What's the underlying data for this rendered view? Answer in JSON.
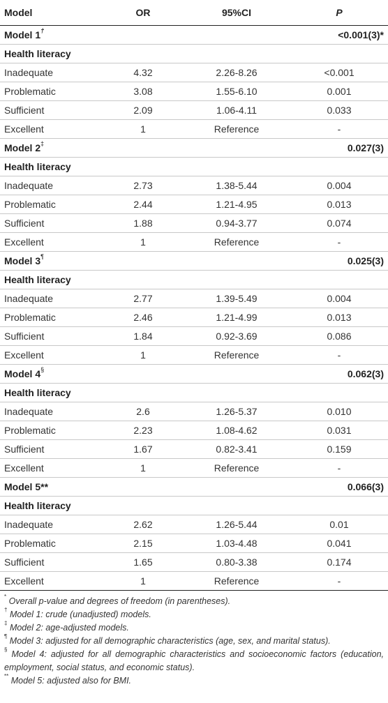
{
  "header": {
    "col_model": "Model",
    "col_or": "OR",
    "col_ci": "95%CI",
    "col_p": "P"
  },
  "sections": [
    {
      "model": "Model 1",
      "mark": "†",
      "p": "<0.001(3)*",
      "sub": "Health literacy",
      "rows": [
        {
          "label": "Inadequate",
          "or": "4.32",
          "ci": "2.26-8.26",
          "p": "<0.001"
        },
        {
          "label": "Problematic",
          "or": "3.08",
          "ci": "1.55-6.10",
          "p": "0.001"
        },
        {
          "label": "Sufficient",
          "or": "2.09",
          "ci": "1.06-4.11",
          "p": "0.033"
        },
        {
          "label": "Excellent",
          "or": "1",
          "ci": "Reference",
          "p": "-"
        }
      ]
    },
    {
      "model": "Model 2",
      "mark": "‡",
      "p": "0.027(3)",
      "sub": "Health literacy",
      "rows": [
        {
          "label": "Inadequate",
          "or": "2.73",
          "ci": "1.38-5.44",
          "p": "0.004"
        },
        {
          "label": "Problematic",
          "or": "2.44",
          "ci": "1.21-4.95",
          "p": "0.013"
        },
        {
          "label": "Sufficient",
          "or": "1.88",
          "ci": "0.94-3.77",
          "p": "0.074"
        },
        {
          "label": "Excellent",
          "or": "1",
          "ci": "Reference",
          "p": "-"
        }
      ]
    },
    {
      "model": "Model 3",
      "mark": "¶",
      "p": "0.025(3)",
      "sub": "Health literacy",
      "rows": [
        {
          "label": "Inadequate",
          "or": "2.77",
          "ci": "1.39-5.49",
          "p": "0.004"
        },
        {
          "label": "Problematic",
          "or": "2.46",
          "ci": "1.21-4.99",
          "p": "0.013"
        },
        {
          "label": "Sufficient",
          "or": "1.84",
          "ci": "0.92-3.69",
          "p": "0.086"
        },
        {
          "label": "Excellent",
          "or": "1",
          "ci": "Reference",
          "p": "-"
        }
      ]
    },
    {
      "model": "Model 4",
      "mark": "§",
      "p": "0.062(3)",
      "sub": "Health literacy",
      "rows": [
        {
          "label": "Inadequate",
          "or": "2.6",
          "ci": "1.26-5.37",
          "p": "0.010"
        },
        {
          "label": "Problematic",
          "or": "2.23",
          "ci": "1.08-4.62",
          "p": "0.031"
        },
        {
          "label": "Sufficient",
          "or": "1.67",
          "ci": "0.82-3.41",
          "p": "0.159"
        },
        {
          "label": "Excellent",
          "or": "1",
          "ci": "Reference",
          "p": "-"
        }
      ]
    },
    {
      "model": "Model 5**",
      "mark": "",
      "p": "0.066(3)",
      "sub": "Health literacy",
      "rows": [
        {
          "label": "Inadequate",
          "or": "2.62",
          "ci": "1.26-5.44",
          "p": "0.01"
        },
        {
          "label": "Problematic",
          "or": "2.15",
          "ci": "1.03-4.48",
          "p": "0.041"
        },
        {
          "label": "Sufficient",
          "or": "1.65",
          "ci": "0.80-3.38",
          "p": "0.174"
        },
        {
          "label": "Excellent",
          "or": "1",
          "ci": "Reference",
          "p": "-"
        }
      ]
    }
  ],
  "footnotes": [
    {
      "mark": "*",
      "text": "Overall p-value and degrees of freedom (in parentheses)."
    },
    {
      "mark": "†",
      "text": "Model 1: crude (unadjusted) models."
    },
    {
      "mark": "‡",
      "text": "Model 2: age-adjusted models."
    },
    {
      "mark": "¶",
      "text": "Model 3: adjusted for all demographic characteristics (age, sex, and marital status)."
    },
    {
      "mark": "§",
      "text": "Model 4: adjusted for all demographic characteristics and socioeconomic factors (education, employment, social status, and economic status)."
    },
    {
      "mark": "**",
      "text": "Model 5: adjusted also for BMI."
    }
  ]
}
